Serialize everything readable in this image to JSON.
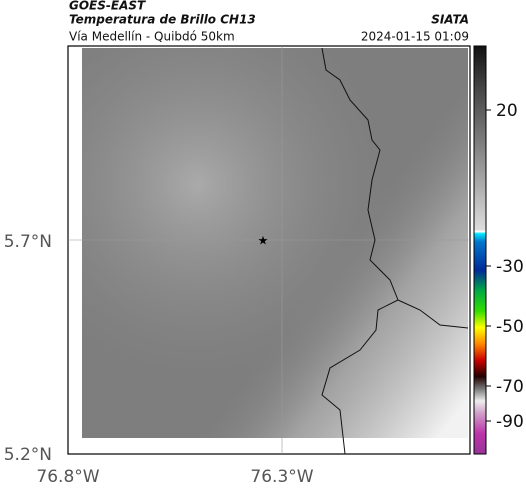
{
  "header": {
    "satellite": "GOES-EAST",
    "product": "Temperatura de Brillo CH13",
    "source": "SIATA",
    "region": "Vía Medellín - Quibdó 50km",
    "datetime": "2024-01-15 01:09"
  },
  "map": {
    "lat_labels": [
      "5.7°N",
      "5.2°N"
    ],
    "lon_labels": [
      "76.8°W",
      "76.3°W"
    ]
  },
  "colorbar": {
    "ticks": [
      "20",
      "-30",
      "-50",
      "-70",
      "-90"
    ]
  }
}
